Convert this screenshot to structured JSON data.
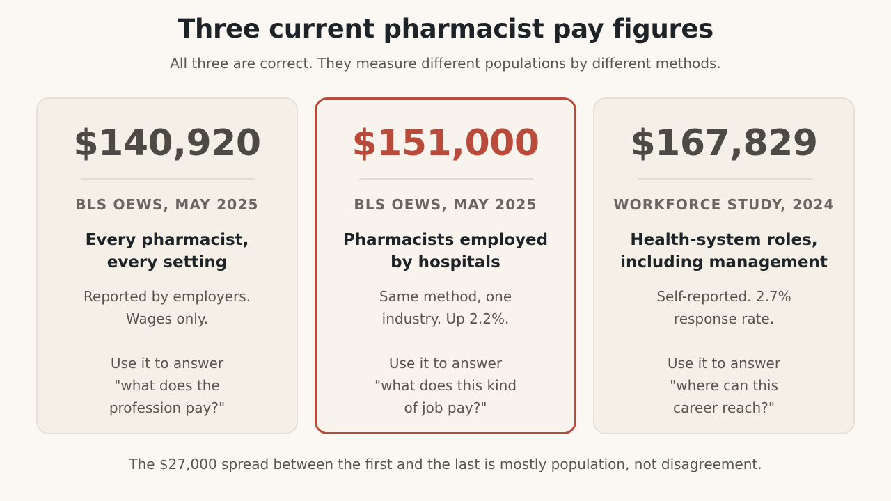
{
  "header": {
    "title": "Three current pharmacist pay figures",
    "subtitle": "All three are correct. They measure different populations by different methods."
  },
  "cards": [
    {
      "amount": "$140,920",
      "source": "BLS OEWS, MAY 2025",
      "heading_line1": "Every pharmacist,",
      "heading_line2": "every setting",
      "desc_line1": "Reported by employers.",
      "desc_line2": "Wages only.",
      "use_line1": "Use it to answer",
      "use_line2": "\"what does the",
      "use_line3": "profession pay?\""
    },
    {
      "amount": "$151,000",
      "source": "BLS OEWS, MAY 2025",
      "heading_line1": "Pharmacists employed",
      "heading_line2": "by hospitals",
      "desc_line1": "Same method, one",
      "desc_line2": "industry. Up 2.2%.",
      "use_line1": "Use it to answer",
      "use_line2": "\"what does this kind",
      "use_line3": "of job pay?\""
    },
    {
      "amount": "$167,829",
      "source": "WORKFORCE STUDY, 2024",
      "heading_line1": "Health-system roles,",
      "heading_line2": "including management",
      "desc_line1": "Self-reported. 2.7%",
      "desc_line2": "response rate.",
      "use_line1": "Use it to answer",
      "use_line2": "\"where can this",
      "use_line3": "career reach?\""
    }
  ],
  "footer": {
    "note": "The $27,000 spread between the first and the last is mostly population, not disagreement."
  },
  "colors": {
    "background": "#fbf8f3",
    "card": "#f4efe7",
    "highlight": "#b84b3b"
  }
}
